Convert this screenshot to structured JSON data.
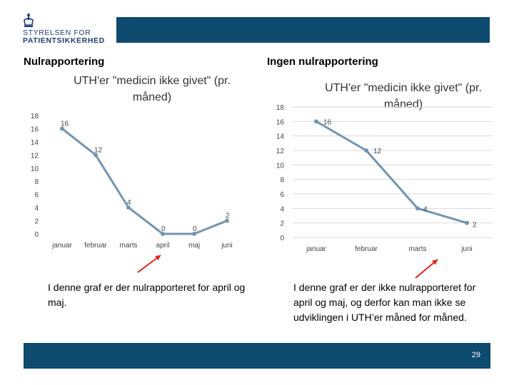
{
  "logo": {
    "line1": "STYRELSEN FOR",
    "line2": "PATIENTSIKKERHED"
  },
  "left": {
    "heading": "Nulrapportering",
    "note": "I denne graf er der nulrapporteret for april og maj."
  },
  "right": {
    "heading": "Ingen nulrapportering",
    "note": "I denne graf er der ikke nulrapporteret for april og maj, og derfor kan man ikke se udviklingen i UTH’er måned for måned."
  },
  "page_number": "29",
  "colors": {
    "line": "#7196b1",
    "bar": "#0f4a6f",
    "arrow": "#e8201b",
    "grid": "#d9d9d9"
  },
  "chart_data": [
    {
      "type": "line",
      "title": [
        "UTH'er \"medicin ikke givet\" (pr.",
        "måned)"
      ],
      "categories": [
        "januar",
        "februar",
        "marts",
        "april",
        "maj",
        "juni"
      ],
      "values": [
        16,
        12,
        4,
        0,
        0,
        2
      ],
      "y_ticks": [
        0,
        2,
        4,
        6,
        8,
        10,
        12,
        14,
        16,
        18
      ],
      "ylim": [
        0,
        18
      ],
      "grid": false
    },
    {
      "type": "line",
      "title": [
        "UTH'er \"medicin ikke givet\" (pr.",
        "måned)"
      ],
      "categories": [
        "januar",
        "februar",
        "marts",
        "juni"
      ],
      "values": [
        16,
        12,
        4,
        2
      ],
      "y_ticks": [
        0,
        2,
        4,
        6,
        8,
        10,
        12,
        14,
        16,
        18
      ],
      "ylim": [
        0,
        18
      ],
      "grid": true
    }
  ]
}
